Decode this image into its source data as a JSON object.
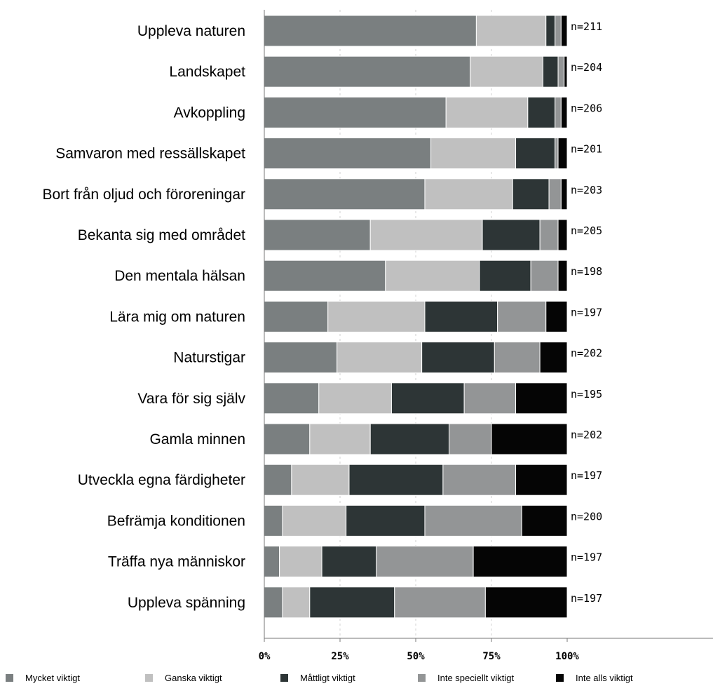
{
  "chart_data": {
    "type": "bar",
    "orientation": "horizontal",
    "stacked": "percent",
    "categories": [
      "Uppleva naturen",
      "Landskapet",
      "Avkoppling",
      "Samvaron med ressällskapet",
      "Bort från oljud och föroreningar",
      "Bekanta sig med området",
      "Den mentala hälsan",
      "Lära mig om naturen",
      "Naturstigar",
      "Vara för sig själv",
      "Gamla minnen",
      "Utveckla egna färdigheter",
      "Befrämja konditionen",
      "Träffa nya människor",
      "Uppleva spänning"
    ],
    "n_labels": [
      "n=211",
      "n=204",
      "n=206",
      "n=201",
      "n=203",
      "n=205",
      "n=198",
      "n=197",
      "n=202",
      "n=195",
      "n=202",
      "n=197",
      "n=200",
      "n=197",
      "n=197"
    ],
    "series": [
      {
        "name": "Mycket viktigt",
        "color": "#7a7f80",
        "values": [
          70,
          68,
          60,
          55,
          53,
          35,
          40,
          21,
          24,
          18,
          15,
          9,
          6,
          5,
          6
        ]
      },
      {
        "name": "Ganska viktigt",
        "color": "#c0c0c0",
        "values": [
          23,
          24,
          27,
          28,
          29,
          37,
          31,
          32,
          28,
          24,
          20,
          19,
          21,
          14,
          9
        ]
      },
      {
        "name": "Måttligt viktigt",
        "color": "#2d3536",
        "values": [
          3,
          5,
          9,
          13,
          12,
          19,
          17,
          24,
          24,
          24,
          26,
          31,
          26,
          18,
          28
        ]
      },
      {
        "name": "Inte speciellt viktigt",
        "color": "#939596",
        "values": [
          2,
          2,
          2,
          1,
          4,
          6,
          9,
          16,
          15,
          17,
          14,
          24,
          32,
          32,
          30
        ]
      },
      {
        "name": "Inte alls viktigt",
        "color": "#050505",
        "values": [
          2,
          1,
          2,
          3,
          2,
          3,
          3,
          7,
          9,
          17,
          25,
          17,
          15,
          31,
          27
        ]
      }
    ],
    "x_ticks": [
      "0%",
      "25%",
      "50%",
      "75%",
      "100%"
    ],
    "xlim": [
      0,
      100
    ],
    "grid": "vertical dashed",
    "legend_position": "bottom"
  }
}
